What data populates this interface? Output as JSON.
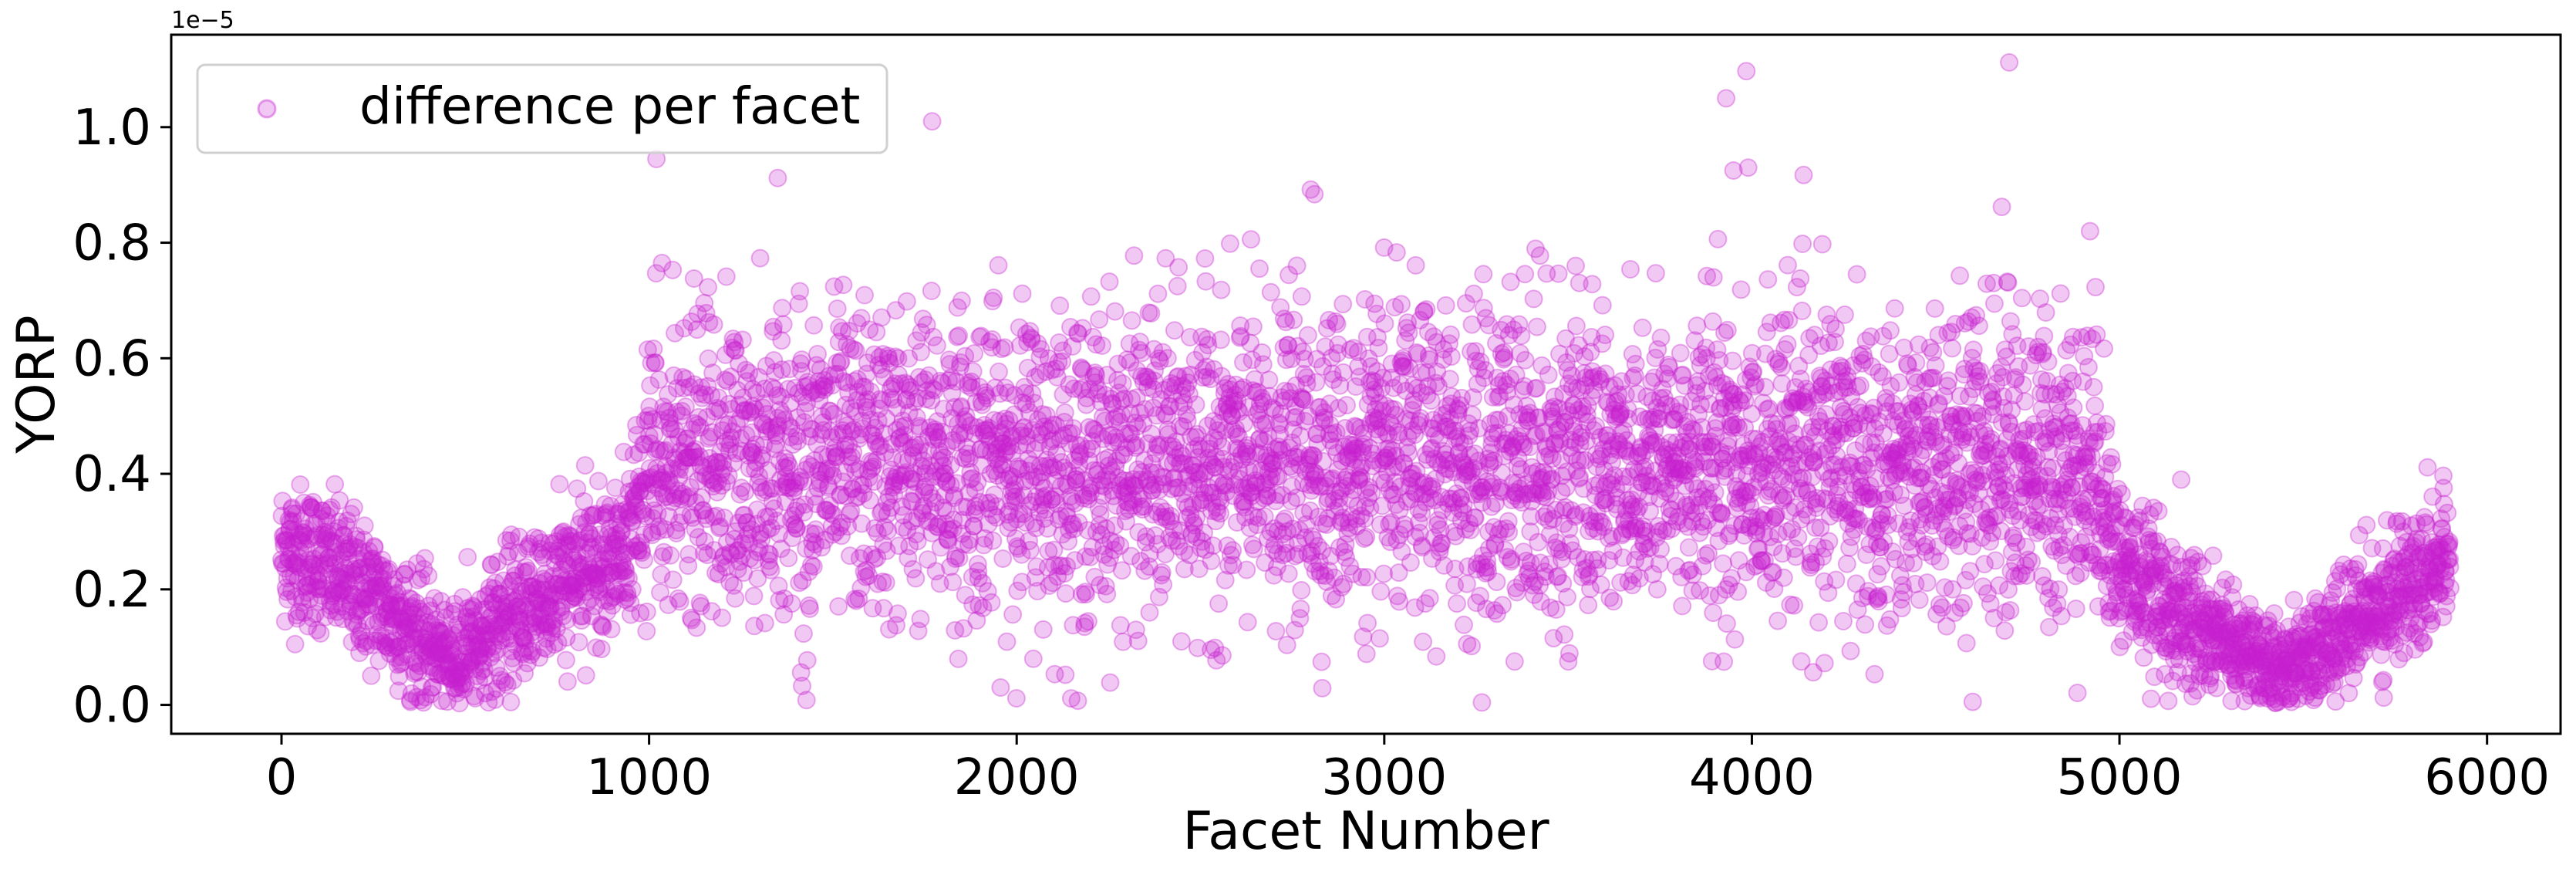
{
  "chart_data": {
    "type": "scatter",
    "title": "",
    "xlabel": "Facet Number",
    "ylabel": "YORP",
    "y_offset_label": "1e−5",
    "xlim": [
      -300,
      6200
    ],
    "ylim": [
      -0.05,
      1.16
    ],
    "x_ticks": [
      0,
      1000,
      2000,
      3000,
      4000,
      5000,
      6000
    ],
    "x_tick_labels": [
      "0",
      "1000",
      "2000",
      "3000",
      "4000",
      "5000",
      "6000"
    ],
    "y_ticks": [
      0.0,
      0.2,
      0.4,
      0.6,
      0.8,
      1.0
    ],
    "y_tick_labels": [
      "0.0",
      "0.2",
      "0.4",
      "0.6",
      "0.8",
      "1.0"
    ],
    "grid": false,
    "legend_position": "top-left",
    "series": [
      {
        "name": "difference per facet",
        "color": "#c71fcf",
        "alpha": 0.25,
        "marker": "circle",
        "profile_x": [
          0,
          100,
          200,
          300,
          400,
          450,
          500,
          600,
          700,
          800,
          900,
          950,
          1000,
          1200,
          1500,
          2000,
          2500,
          3000,
          3500,
          4000,
          4500,
          4900,
          4950,
          5000,
          5100,
          5200,
          5300,
          5400,
          5450,
          5500,
          5600,
          5700,
          5800,
          5900
        ],
        "profile_mean": [
          0.27,
          0.25,
          0.21,
          0.16,
          0.11,
          0.08,
          0.09,
          0.14,
          0.18,
          0.22,
          0.26,
          0.28,
          0.4,
          0.41,
          0.42,
          0.42,
          0.42,
          0.42,
          0.42,
          0.42,
          0.42,
          0.42,
          0.4,
          0.24,
          0.19,
          0.15,
          0.11,
          0.07,
          0.06,
          0.08,
          0.12,
          0.17,
          0.22,
          0.27
        ],
        "profile_spread": [
          0.06,
          0.06,
          0.06,
          0.06,
          0.05,
          0.04,
          0.05,
          0.06,
          0.06,
          0.06,
          0.06,
          0.07,
          0.13,
          0.13,
          0.13,
          0.13,
          0.13,
          0.13,
          0.13,
          0.13,
          0.13,
          0.13,
          0.12,
          0.07,
          0.06,
          0.06,
          0.05,
          0.04,
          0.04,
          0.04,
          0.05,
          0.06,
          0.06,
          0.06
        ],
        "n_points": 5900,
        "outliers": [
          {
            "x": 1020,
            "y": 0.945
          },
          {
            "x": 1350,
            "y": 0.912
          },
          {
            "x": 1770,
            "y": 1.01
          },
          {
            "x": 2800,
            "y": 0.892
          },
          {
            "x": 2810,
            "y": 0.884
          },
          {
            "x": 3930,
            "y": 1.05
          },
          {
            "x": 3985,
            "y": 1.097
          },
          {
            "x": 3950,
            "y": 0.925
          },
          {
            "x": 3990,
            "y": 0.93
          },
          {
            "x": 4700,
            "y": 1.112
          },
          {
            "x": 4680,
            "y": 0.862
          },
          {
            "x": 4920,
            "y": 0.82
          }
        ]
      }
    ]
  }
}
